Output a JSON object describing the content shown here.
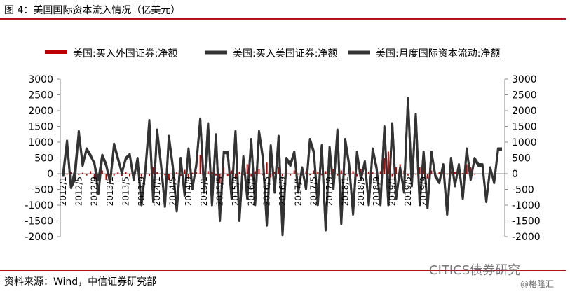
{
  "title": "图 4：美国国际资本流入情况（亿美元）",
  "source": "资料来源：Wind，中信证券研究部",
  "watermark": "CITICS债券研究",
  "site": "@格隆汇",
  "colors": {
    "red": "#c00000",
    "dark": "#333333",
    "rule": "#b5121b"
  },
  "chart_data": {
    "type": "bar+line",
    "legend_position": "top",
    "grid": false,
    "ylim": [
      -2000,
      3000
    ],
    "y2lim": [
      -2000,
      3000
    ],
    "yticks": [
      "3000",
      "2500",
      "2000",
      "1500",
      "1000",
      "500",
      "0",
      "-500",
      "-1000",
      "-1500",
      "-2000"
    ],
    "x_tick_labels": [
      "2012/1",
      "2012/5",
      "2012/9",
      "2013/1",
      "2013/5",
      "2013/9",
      "2014/1",
      "2014/5",
      "2014/9",
      "2015/1",
      "2015/5",
      "2015/9",
      "2016/1",
      "2016/5",
      "2016/9",
      "2017/1",
      "2017/5",
      "2017/9",
      "2018/1",
      "2018/5",
      "2018/9",
      "2019/1",
      "2019/5",
      "2019/9"
    ],
    "start": "2012/1",
    "series": [
      {
        "name": "美国:买入外国证券:净额",
        "kind": "bar",
        "color": "#c00000",
        "values": [
          20,
          -30,
          50,
          120,
          -40,
          30,
          -60,
          80,
          -150,
          -30,
          100,
          -200,
          -50,
          -60,
          40,
          -80,
          50,
          -100,
          30,
          -20,
          -100,
          60,
          -80,
          200,
          50,
          30,
          -50,
          -200,
          100,
          40,
          -80,
          120,
          -150,
          30,
          50,
          600,
          -100,
          80,
          40,
          -60,
          -300,
          200,
          -80,
          100,
          -150,
          60,
          -50,
          300,
          -100,
          80,
          150,
          -50,
          350,
          -120,
          60,
          200,
          -80,
          150,
          -60,
          100,
          -30,
          200,
          80,
          -50,
          100,
          60,
          -50,
          80,
          30,
          150,
          -60,
          100,
          -50,
          200,
          80,
          -100,
          150,
          -30,
          60,
          40,
          300,
          80,
          500,
          700,
          -100,
          200,
          300,
          100,
          -60,
          60,
          -30,
          200,
          400,
          -150,
          100,
          -50,
          50,
          150,
          -30,
          80,
          60,
          50,
          20,
          300,
          200,
          -30
        ]
      },
      {
        "name": "美国:买入美国证券:净额",
        "kind": "line",
        "color": "#333333",
        "values": [
          0,
          1050,
          -450,
          -200,
          1350,
          250,
          800,
          600,
          300,
          -200,
          600,
          300,
          -300,
          950,
          500,
          0,
          500,
          620,
          -200,
          500,
          -1000,
          100,
          1600,
          -900,
          1400,
          300,
          -1000,
          1200,
          250,
          -1200,
          500,
          -700,
          800,
          -500,
          300,
          1700,
          -600,
          1600,
          -1000,
          1250,
          -1500,
          700,
          700,
          -800,
          1350,
          -1500,
          550,
          -800,
          1100,
          -1000,
          1350,
          500,
          -1600,
          900,
          -600,
          1200,
          -1900,
          500,
          300,
          700,
          -600,
          200,
          -500,
          1100,
          700,
          -1000,
          900,
          -1800,
          850,
          -500,
          1400,
          -1600,
          1100,
          300,
          -1300,
          700,
          -200,
          400,
          -1000,
          800,
          200,
          -1000,
          1500,
          -1000,
          1600,
          -800,
          200,
          -600,
          2400,
          -400,
          1900,
          -1000,
          700,
          -1100,
          700,
          -100,
          -300,
          300,
          -1300,
          500,
          -400,
          300,
          -800,
          800,
          -200,
          500,
          300,
          300,
          -900,
          200,
          -300,
          800,
          800
        ]
      },
      {
        "name": "美国:月度国际资本流动:净额",
        "kind": "line",
        "color": "#333333",
        "values": [
          -100,
          1000,
          -450,
          100,
          1300,
          300,
          750,
          550,
          350,
          -650,
          550,
          250,
          -250,
          900,
          450,
          50,
          450,
          600,
          -150,
          450,
          -1000,
          150,
          1700,
          -850,
          1350,
          250,
          -1050,
          1150,
          200,
          -1150,
          450,
          -650,
          750,
          -450,
          250,
          1750,
          -550,
          1550,
          -950,
          1200,
          -1450,
          650,
          650,
          -750,
          1300,
          -1450,
          500,
          -750,
          1050,
          -950,
          1300,
          450,
          -1650,
          850,
          -550,
          1150,
          -1950,
          450,
          250,
          650,
          -550,
          150,
          -450,
          1050,
          650,
          -950,
          850,
          -1750,
          800,
          -450,
          1350,
          -1550,
          1050,
          250,
          -1250,
          650,
          -150,
          350,
          -950,
          750,
          150,
          -950,
          1450,
          -950,
          1550,
          -750,
          150,
          -550,
          2350,
          -350,
          1850,
          -950,
          650,
          -1050,
          650,
          -50,
          -250,
          250,
          -1300,
          450,
          -350,
          250,
          -750,
          750,
          -150,
          450,
          250,
          250,
          -850,
          150,
          -250,
          750,
          750
        ]
      }
    ]
  }
}
